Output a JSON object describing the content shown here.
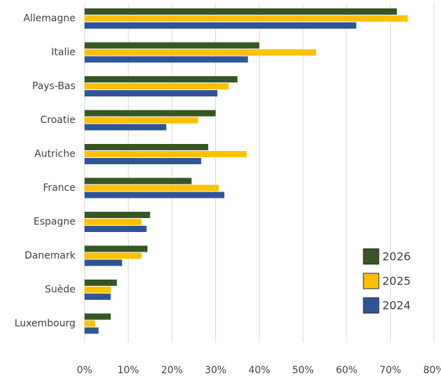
{
  "chart_data": {
    "type": "bar",
    "orientation": "horizontal",
    "categories": [
      "Allemagne",
      "Italie",
      "Pays-Bas",
      "Croatie",
      "Autriche",
      "France",
      "Espagne",
      "Danemark",
      "Suède",
      "Luxembourg"
    ],
    "series": [
      {
        "name": "2026",
        "color": "#375623",
        "values": [
          71.5,
          40,
          35,
          30,
          28.3,
          24.5,
          15,
          14.4,
          7.4,
          6
        ]
      },
      {
        "name": "2025",
        "color": "#ffc000",
        "values": [
          74,
          53,
          33,
          26,
          37.1,
          30.7,
          13,
          13,
          6,
          2.4
        ]
      },
      {
        "name": "2024",
        "color": "#2f5597",
        "values": [
          62.2,
          37.4,
          30.4,
          18.7,
          26.7,
          32,
          14.2,
          8.6,
          6,
          3.2
        ]
      }
    ],
    "xlim": [
      0,
      80
    ],
    "xticks": [
      {
        "value": 0,
        "label": "0%"
      },
      {
        "value": 10,
        "label": "10%"
      },
      {
        "value": 20,
        "label": "20%"
      },
      {
        "value": 30,
        "label": "30%"
      },
      {
        "value": 40,
        "label": "40%"
      },
      {
        "value": 50,
        "label": "50%"
      },
      {
        "value": 60,
        "label": "60%"
      },
      {
        "value": 70,
        "label": "70%"
      },
      {
        "value": 80,
        "label": "80%"
      }
    ],
    "grid": true,
    "legend": "lower right"
  }
}
